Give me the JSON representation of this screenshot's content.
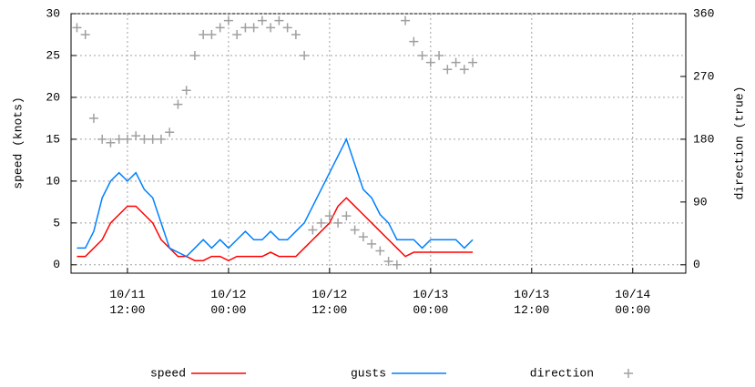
{
  "chart_data": {
    "type": "line",
    "y_label": "speed (knots)",
    "y2_label": "direction (true)",
    "xlim": [
      5.3,
      78.3
    ],
    "xticks": [
      {
        "value": 12,
        "label": "10/11\n12:00"
      },
      {
        "value": 24,
        "label": "10/12\n00:00"
      },
      {
        "value": 36,
        "label": "10/12\n12:00"
      },
      {
        "value": 48,
        "label": "10/13\n00:00"
      },
      {
        "value": 60,
        "label": "10/13\n12:00"
      },
      {
        "value": 72,
        "label": "10/14\n00:00"
      }
    ],
    "ylim": [
      -1,
      30
    ],
    "yticks": [
      0,
      5,
      10,
      15,
      20,
      25,
      30
    ],
    "y2lim": [
      -12,
      360
    ],
    "y2ticks": [
      0,
      90,
      180,
      270,
      360
    ],
    "grid": true,
    "x": [
      6,
      7,
      8,
      9,
      10,
      11,
      12,
      13,
      14,
      15,
      16,
      17,
      18,
      19,
      20,
      21,
      22,
      23,
      24,
      25,
      26,
      27,
      28,
      29,
      30,
      31,
      32,
      33,
      34,
      35,
      36,
      37,
      38,
      39,
      40,
      41,
      42,
      43,
      44,
      45,
      46,
      47,
      48,
      49,
      50,
      51,
      52,
      53
    ],
    "series": [
      {
        "name": "speed",
        "color": "#ff0000",
        "style": "line",
        "values": [
          1,
          1,
          2,
          3,
          5,
          6,
          7,
          7,
          6,
          5,
          3,
          2,
          1,
          1,
          0.5,
          0.5,
          1,
          1,
          0.5,
          1,
          1,
          1,
          1,
          1.5,
          1,
          1,
          1,
          2,
          3,
          4,
          5,
          7,
          8,
          7,
          6,
          5,
          4,
          3,
          2,
          1,
          1.5,
          1.5,
          1.5,
          1.5,
          1.5,
          1.5,
          1.5,
          1.5
        ]
      },
      {
        "name": "gusts",
        "color": "#0080ff",
        "style": "line",
        "values": [
          2,
          2,
          4,
          8,
          10,
          11,
          10,
          11,
          9,
          8,
          5,
          2,
          1.5,
          1,
          2,
          3,
          2,
          3,
          2,
          3,
          4,
          3,
          3,
          4,
          3,
          3,
          4,
          5,
          7,
          9,
          11,
          13,
          15,
          12,
          9,
          8,
          6,
          5,
          3,
          3,
          3,
          2,
          3,
          3,
          3,
          3,
          2,
          3
        ]
      },
      {
        "name": "direction",
        "color": "#a0a0a0",
        "style": "points",
        "axis": "y2",
        "values": [
          340,
          330,
          210,
          180,
          175,
          180,
          180,
          185,
          180,
          180,
          180,
          190,
          230,
          250,
          300,
          330,
          330,
          340,
          350,
          330,
          340,
          340,
          350,
          340,
          350,
          340,
          330,
          300,
          50,
          60,
          70,
          60,
          70,
          50,
          40,
          30,
          20,
          5,
          0,
          350,
          320,
          300,
          290,
          300,
          280,
          290,
          280,
          290
        ]
      }
    ]
  }
}
